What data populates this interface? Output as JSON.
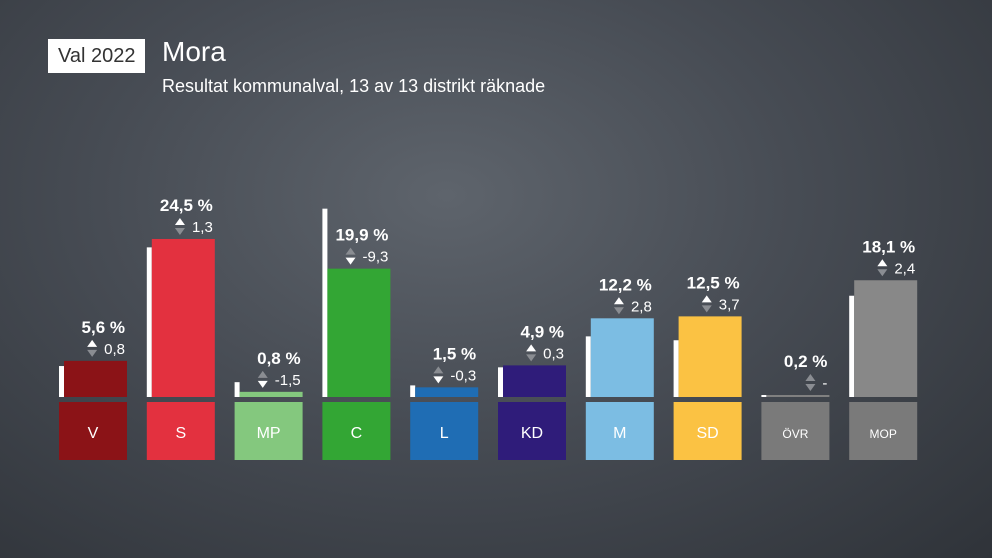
{
  "header": {
    "tag": "Val 2022",
    "title": "Mora",
    "subtitle": "Resultat kommunalval, 13 av 13 distrikt räknade"
  },
  "chart_data": {
    "type": "bar",
    "categories": [
      "V",
      "S",
      "MP",
      "C",
      "L",
      "KD",
      "M",
      "SD",
      "ÖVR",
      "MOP"
    ],
    "values": [
      5.6,
      24.5,
      0.8,
      19.9,
      1.5,
      4.9,
      12.2,
      12.5,
      0.2,
      18.1
    ],
    "value_labels": [
      "5,6 %",
      "24,5 %",
      "0,8 %",
      "19,9 %",
      "1,5 %",
      "4,9 %",
      "12,2 %",
      "12,5 %",
      "0,2 %",
      "18,1 %"
    ],
    "previous_values": [
      4.8,
      23.2,
      2.3,
      29.2,
      1.8,
      4.6,
      9.4,
      8.8,
      0.2,
      15.7
    ],
    "changes": [
      0.8,
      1.3,
      -1.5,
      -9.3,
      -0.3,
      0.3,
      2.8,
      3.7,
      null,
      2.4
    ],
    "change_labels": [
      "0,8",
      "1,3",
      "-1,5",
      "-9,3",
      "-0,3",
      "0,3",
      "2,8",
      "3,7",
      "-",
      "2,4"
    ],
    "colors": [
      "#8b1317",
      "#e3313f",
      "#84c87e",
      "#33a634",
      "#1f6db4",
      "#2f1c7a",
      "#7cbde3",
      "#fbc243",
      "#808080",
      "#888888"
    ],
    "label_colors": [
      "#8b1317",
      "#e3313f",
      "#84c87e",
      "#33a634",
      "#1f6db4",
      "#2f1c7a",
      "#7cbde3",
      "#fbc243",
      "#7a7a7a",
      "#7a7a7a"
    ],
    "ylim": [
      0,
      30
    ]
  }
}
